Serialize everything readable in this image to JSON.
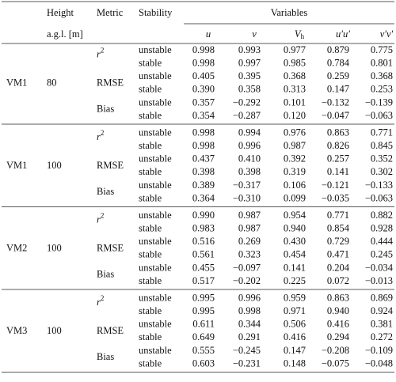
{
  "header": {
    "height": "Height",
    "height_unit": "a.g.l. [m]",
    "metric": "Metric",
    "stability": "Stability",
    "variables_title": "Variables",
    "variables": [
      {
        "symbol": "u"
      },
      {
        "symbol": "v"
      },
      {
        "symbol": "V",
        "subscript": "h"
      },
      {
        "symbol": "u′u′"
      },
      {
        "symbol": "v′v′"
      }
    ]
  },
  "groups": [
    {
      "station": "VM1",
      "height": "80",
      "metrics": [
        {
          "name": {
            "symbol": "r",
            "superscript": "2"
          },
          "rows": [
            {
              "stability": "unstable",
              "values": [
                "0.998",
                "0.993",
                "0.977",
                "0.879",
                "0.775"
              ]
            },
            {
              "stability": "stable",
              "values": [
                "0.998",
                "0.997",
                "0.985",
                "0.784",
                "0.801"
              ]
            }
          ]
        },
        {
          "name": "RMSE",
          "rows": [
            {
              "stability": "unstable",
              "values": [
                "0.405",
                "0.395",
                "0.368",
                "0.259",
                "0.368"
              ]
            },
            {
              "stability": "stable",
              "values": [
                "0.390",
                "0.358",
                "0.313",
                "0.147",
                "0.253"
              ]
            }
          ]
        },
        {
          "name": "Bias",
          "rows": [
            {
              "stability": "unstable",
              "values": [
                "0.357",
                "−0.292",
                "0.101",
                "−0.132",
                "−0.139"
              ]
            },
            {
              "stability": "stable",
              "values": [
                "0.354",
                "−0.287",
                "0.120",
                "−0.047",
                "−0.063"
              ]
            }
          ]
        }
      ]
    },
    {
      "station": "VM1",
      "height": "100",
      "metrics": [
        {
          "name": {
            "symbol": "r",
            "superscript": "2"
          },
          "rows": [
            {
              "stability": "unstable",
              "values": [
                "0.998",
                "0.994",
                "0.976",
                "0.863",
                "0.771"
              ]
            },
            {
              "stability": "stable",
              "values": [
                "0.998",
                "0.996",
                "0.987",
                "0.826",
                "0.845"
              ]
            }
          ]
        },
        {
          "name": "RMSE",
          "rows": [
            {
              "stability": "unstable",
              "values": [
                "0.437",
                "0.410",
                "0.392",
                "0.257",
                "0.352"
              ]
            },
            {
              "stability": "stable",
              "values": [
                "0.398",
                "0.398",
                "0.319",
                "0.141",
                "0.302"
              ]
            }
          ]
        },
        {
          "name": "Bias",
          "rows": [
            {
              "stability": "unstable",
              "values": [
                "0.389",
                "−0.317",
                "0.106",
                "−0.121",
                "−0.133"
              ]
            },
            {
              "stability": "stable",
              "values": [
                "0.364",
                "−0.310",
                "0.099",
                "−0.035",
                "−0.063"
              ]
            }
          ]
        }
      ]
    },
    {
      "station": "VM2",
      "height": "100",
      "metrics": [
        {
          "name": {
            "symbol": "r",
            "superscript": "2"
          },
          "rows": [
            {
              "stability": "unstable",
              "values": [
                "0.990",
                "0.987",
                "0.954",
                "0.771",
                "0.882"
              ]
            },
            {
              "stability": "stable",
              "values": [
                "0.983",
                "0.987",
                "0.940",
                "0.854",
                "0.928"
              ]
            }
          ]
        },
        {
          "name": "RMSE",
          "rows": [
            {
              "stability": "unstable",
              "values": [
                "0.516",
                "0.269",
                "0.430",
                "0.729",
                "0.444"
              ]
            },
            {
              "stability": "stable",
              "values": [
                "0.561",
                "0.323",
                "0.454",
                "0.471",
                "0.245"
              ]
            }
          ]
        },
        {
          "name": "Bias",
          "rows": [
            {
              "stability": "unstable",
              "values": [
                "0.455",
                "−0.097",
                "0.141",
                "0.204",
                "−0.034"
              ]
            },
            {
              "stability": "stable",
              "values": [
                "0.517",
                "−0.202",
                "0.225",
                "0.072",
                "−0.013"
              ]
            }
          ]
        }
      ]
    },
    {
      "station": "VM3",
      "height": "100",
      "metrics": [
        {
          "name": {
            "symbol": "r",
            "superscript": "2"
          },
          "rows": [
            {
              "stability": "unstable",
              "values": [
                "0.995",
                "0.996",
                "0.959",
                "0.863",
                "0.869"
              ]
            },
            {
              "stability": "stable",
              "values": [
                "0.995",
                "0.998",
                "0.971",
                "0.940",
                "0.924"
              ]
            }
          ]
        },
        {
          "name": "RMSE",
          "rows": [
            {
              "stability": "unstable",
              "values": [
                "0.611",
                "0.344",
                "0.506",
                "0.416",
                "0.381"
              ]
            },
            {
              "stability": "stable",
              "values": [
                "0.649",
                "0.291",
                "0.416",
                "0.294",
                "0.272"
              ]
            }
          ]
        },
        {
          "name": "Bias",
          "rows": [
            {
              "stability": "unstable",
              "values": [
                "0.555",
                "−0.245",
                "0.147",
                "−0.208",
                "−0.109"
              ]
            },
            {
              "stability": "stable",
              "values": [
                "0.603",
                "−0.231",
                "0.148",
                "−0.075",
                "−0.048"
              ]
            }
          ]
        }
      ]
    }
  ]
}
